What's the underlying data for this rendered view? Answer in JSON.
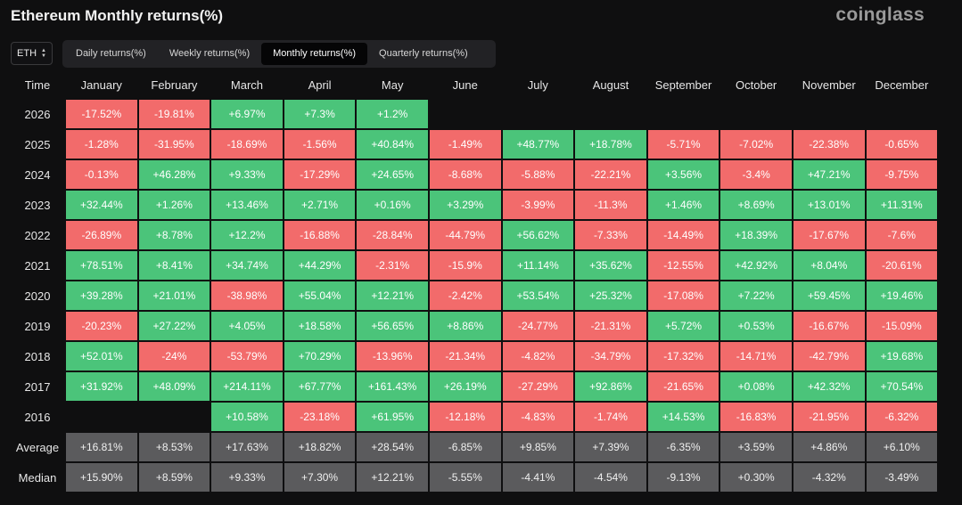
{
  "header": {
    "title": "Ethereum Monthly returns(%)",
    "brand": "coinglass"
  },
  "asset_select": {
    "value": "ETH"
  },
  "tabs": [
    {
      "label": "Daily returns(%)",
      "active": false
    },
    {
      "label": "Weekly returns(%)",
      "active": false
    },
    {
      "label": "Monthly returns(%)",
      "active": true
    },
    {
      "label": "Quarterly returns(%)",
      "active": false
    }
  ],
  "colors": {
    "positive": "#4bc47a",
    "negative": "#f26b6b",
    "stat": "#5b5b5d",
    "background": "#0f0f10"
  },
  "table": {
    "columns": [
      "Time",
      "January",
      "February",
      "March",
      "April",
      "May",
      "June",
      "July",
      "August",
      "September",
      "October",
      "November",
      "December"
    ],
    "rows": [
      {
        "year": "2026",
        "values": [
          "-17.52%",
          "-19.81%",
          "+6.97%",
          "+7.3%",
          "+1.2%",
          "",
          "",
          "",
          "",
          "",
          "",
          ""
        ]
      },
      {
        "year": "2025",
        "values": [
          "-1.28%",
          "-31.95%",
          "-18.69%",
          "-1.56%",
          "+40.84%",
          "-1.49%",
          "+48.77%",
          "+18.78%",
          "-5.71%",
          "-7.02%",
          "-22.38%",
          "-0.65%"
        ]
      },
      {
        "year": "2024",
        "values": [
          "-0.13%",
          "+46.28%",
          "+9.33%",
          "-17.29%",
          "+24.65%",
          "-8.68%",
          "-5.88%",
          "-22.21%",
          "+3.56%",
          "-3.4%",
          "+47.21%",
          "-9.75%"
        ]
      },
      {
        "year": "2023",
        "values": [
          "+32.44%",
          "+1.26%",
          "+13.46%",
          "+2.71%",
          "+0.16%",
          "+3.29%",
          "-3.99%",
          "-11.3%",
          "+1.46%",
          "+8.69%",
          "+13.01%",
          "+11.31%"
        ]
      },
      {
        "year": "2022",
        "values": [
          "-26.89%",
          "+8.78%",
          "+12.2%",
          "-16.88%",
          "-28.84%",
          "-44.79%",
          "+56.62%",
          "-7.33%",
          "-14.49%",
          "+18.39%",
          "-17.67%",
          "-7.6%"
        ]
      },
      {
        "year": "2021",
        "values": [
          "+78.51%",
          "+8.41%",
          "+34.74%",
          "+44.29%",
          "-2.31%",
          "-15.9%",
          "+11.14%",
          "+35.62%",
          "-12.55%",
          "+42.92%",
          "+8.04%",
          "-20.61%"
        ]
      },
      {
        "year": "2020",
        "values": [
          "+39.28%",
          "+21.01%",
          "-38.98%",
          "+55.04%",
          "+12.21%",
          "-2.42%",
          "+53.54%",
          "+25.32%",
          "-17.08%",
          "+7.22%",
          "+59.45%",
          "+19.46%"
        ]
      },
      {
        "year": "2019",
        "values": [
          "-20.23%",
          "+27.22%",
          "+4.05%",
          "+18.58%",
          "+56.65%",
          "+8.86%",
          "-24.77%",
          "-21.31%",
          "+5.72%",
          "+0.53%",
          "-16.67%",
          "-15.09%"
        ]
      },
      {
        "year": "2018",
        "values": [
          "+52.01%",
          "-24%",
          "-53.79%",
          "+70.29%",
          "-13.96%",
          "-21.34%",
          "-4.82%",
          "-34.79%",
          "-17.32%",
          "-14.71%",
          "-42.79%",
          "+19.68%"
        ]
      },
      {
        "year": "2017",
        "values": [
          "+31.92%",
          "+48.09%",
          "+214.11%",
          "+67.77%",
          "+161.43%",
          "+26.19%",
          "-27.29%",
          "+92.86%",
          "-21.65%",
          "+0.08%",
          "+42.32%",
          "+70.54%"
        ]
      },
      {
        "year": "2016",
        "values": [
          "",
          "",
          "+10.58%",
          "-23.18%",
          "+61.95%",
          "-12.18%",
          "-4.83%",
          "-1.74%",
          "+14.53%",
          "-16.83%",
          "-21.95%",
          "-6.32%"
        ]
      }
    ],
    "summary": [
      {
        "label": "Average",
        "values": [
          "+16.81%",
          "+8.53%",
          "+17.63%",
          "+18.82%",
          "+28.54%",
          "-6.85%",
          "+9.85%",
          "+7.39%",
          "-6.35%",
          "+3.59%",
          "+4.86%",
          "+6.10%"
        ]
      },
      {
        "label": "Median",
        "values": [
          "+15.90%",
          "+8.59%",
          "+9.33%",
          "+7.30%",
          "+12.21%",
          "-5.55%",
          "-4.41%",
          "-4.54%",
          "-9.13%",
          "+0.30%",
          "-4.32%",
          "-3.49%"
        ]
      }
    ]
  }
}
